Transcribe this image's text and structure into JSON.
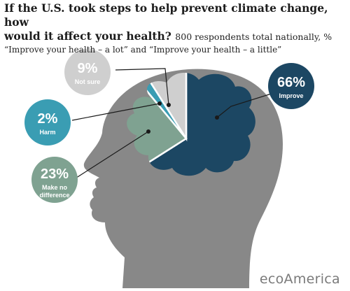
{
  "header": {
    "title_line1": "If the U.S. took steps to help prevent climate change, how",
    "title_line2": "would it affect your health?",
    "subtitle_inline": "800 respondents total nationally, %",
    "subtitle_line2": "“Improve your health – a lot” and “Improve your health – a little”"
  },
  "brand": "ecoAmerica",
  "colors": {
    "improve": "#1c4763",
    "harm": "#3a9db3",
    "make_no_difference": "#7fa291",
    "not_sure": "#cfcfcf",
    "head": "#888888"
  },
  "chart_data": {
    "type": "pie",
    "title": "If the U.S. took steps to help prevent climate change, how would it affect your health?",
    "subtitle": "800 respondents total nationally, %",
    "unit": "%",
    "slices": [
      {
        "label": "Improve",
        "value": 66,
        "display": "66%",
        "color": "#1c4763"
      },
      {
        "label": "Make no difference",
        "value": 23,
        "display": "23%",
        "color": "#7fa291"
      },
      {
        "label": "Harm",
        "value": 2,
        "display": "2%",
        "color": "#3a9db3"
      },
      {
        "label": "Not sure",
        "value": 9,
        "display": "9%",
        "color": "#cfcfcf"
      }
    ],
    "label_lines": [
      "Make no",
      "difference"
    ]
  }
}
